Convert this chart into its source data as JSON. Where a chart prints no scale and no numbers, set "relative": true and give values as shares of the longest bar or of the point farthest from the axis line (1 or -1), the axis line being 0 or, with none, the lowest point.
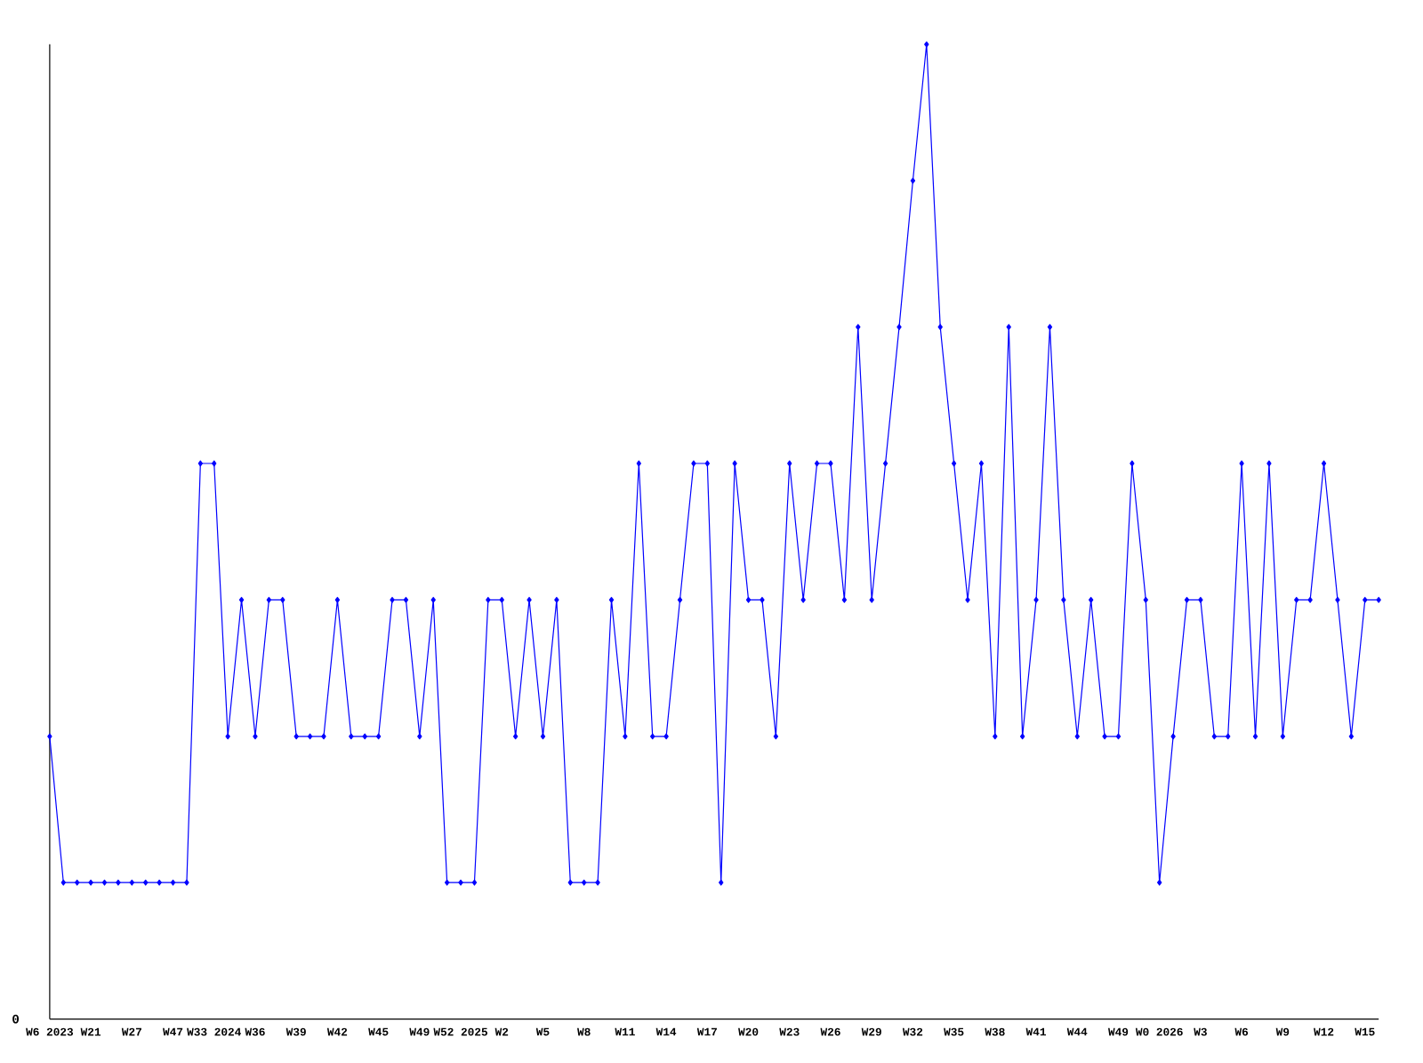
{
  "chart_data": {
    "type": "line",
    "relative": true,
    "color": "#0000ff",
    "marker": "diamond",
    "categories": [
      "W6 2023",
      null,
      null,
      "W21",
      null,
      null,
      "W27",
      null,
      null,
      "W47",
      null,
      null,
      "W33 2024",
      null,
      null,
      "W36",
      null,
      null,
      "W39",
      null,
      null,
      "W42",
      null,
      null,
      "W45",
      null,
      null,
      "W49",
      null,
      null,
      "W52 2025",
      null,
      null,
      "W2",
      null,
      null,
      "W5",
      null,
      null,
      "W8",
      null,
      null,
      "W11",
      null,
      null,
      "W14",
      null,
      null,
      "W17",
      null,
      null,
      "W20",
      null,
      null,
      "W23",
      null,
      null,
      "W26",
      null,
      null,
      "W29",
      null,
      null,
      "W32",
      null,
      null,
      "W35",
      null,
      null,
      "W38",
      null,
      null,
      "W41",
      null,
      null,
      "W44",
      null,
      null,
      "W49",
      null,
      null,
      "W0 2026",
      null,
      null,
      "W3",
      null,
      null,
      "W6",
      null,
      null,
      "W9",
      null,
      null,
      "W12",
      null,
      null,
      "W15",
      null
    ],
    "values": [
      0.29,
      0.14,
      0.14,
      0.14,
      0.14,
      0.14,
      0.14,
      0.14,
      0.14,
      0.14,
      0.14,
      0.57,
      0.57,
      0.29,
      0.43,
      0.29,
      0.43,
      0.43,
      0.29,
      0.29,
      0.29,
      0.43,
      0.29,
      0.29,
      0.29,
      0.43,
      0.43,
      0.29,
      0.43,
      0.14,
      0.14,
      0.14,
      0.43,
      0.43,
      0.29,
      0.43,
      0.29,
      0.43,
      0.14,
      0.14,
      0.14,
      0.43,
      0.29,
      0.57,
      0.29,
      0.29,
      0.43,
      0.57,
      0.57,
      0.14,
      0.57,
      0.43,
      0.43,
      0.29,
      0.57,
      0.43,
      0.57,
      0.57,
      0.43,
      0.71,
      0.43,
      0.57,
      0.71,
      0.86,
      1,
      0.71,
      0.57,
      0.43,
      0.57,
      0.29,
      0.71,
      0.29,
      0.43,
      0.71,
      0.43,
      0.29,
      0.43,
      0.29,
      0.29,
      0.57,
      0.43,
      0.14,
      0.29,
      0.43,
      0.43,
      0.29,
      0.29,
      0.57,
      0.29,
      0.57,
      0.29,
      0.43,
      0.43,
      0.57,
      0.43,
      0.29,
      0.43,
      0.43
    ],
    "annotations": [
      "0"
    ]
  }
}
